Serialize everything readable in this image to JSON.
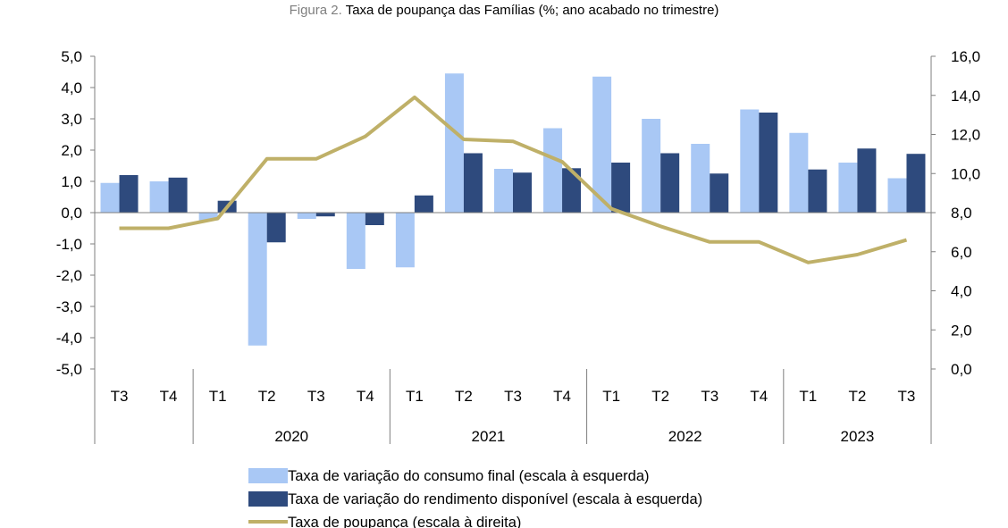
{
  "figure": {
    "prefix": "Figura 2.",
    "title": "Taxa de poupança das Famílias (%; ano acabado no trimestre)"
  },
  "chart_data": {
    "type": "bar",
    "title": "Taxa de poupança das Famílias (%; ano acabado no trimestre)",
    "categories": [
      "T3",
      "T4",
      "T1",
      "T2",
      "T3",
      "T4",
      "T1",
      "T2",
      "T3",
      "T4",
      "T1",
      "T2",
      "T3",
      "T4",
      "T1",
      "T2",
      "T3"
    ],
    "groups": [
      {
        "label": "",
        "start": 0,
        "count": 2
      },
      {
        "label": "2020",
        "start": 2,
        "count": 4
      },
      {
        "label": "2021",
        "start": 6,
        "count": 4
      },
      {
        "label": "2022",
        "start": 10,
        "count": 4
      },
      {
        "label": "2023",
        "start": 14,
        "count": 3
      }
    ],
    "left_axis": {
      "min": -5,
      "max": 5,
      "ticks": [
        "5,0",
        "4,0",
        "3,0",
        "2,0",
        "1,0",
        "0,0",
        "-1,0",
        "-2,0",
        "-3,0",
        "-4,0",
        "-5,0"
      ]
    },
    "right_axis": {
      "min": 0,
      "max": 16,
      "ticks": [
        "16,0",
        "14,0",
        "12,0",
        "10,0",
        "8,0",
        "6,0",
        "4,0",
        "2,0",
        "0,0"
      ]
    },
    "series": [
      {
        "name": "Taxa de variação do consumo final (escala à esquerda)",
        "type": "bar",
        "axis": "left",
        "color": "#a9c8f5",
        "values": [
          0.95,
          1.0,
          -0.25,
          -4.25,
          -0.2,
          -1.8,
          -1.75,
          4.45,
          1.4,
          2.7,
          4.35,
          3.0,
          2.2,
          3.3,
          2.55,
          1.6,
          1.1
        ]
      },
      {
        "name": "Taxa de variação do rendimento disponível (escala à esquerda)",
        "type": "bar",
        "axis": "left",
        "color": "#2e4a7d",
        "values": [
          1.2,
          1.12,
          0.38,
          -0.95,
          -0.12,
          -0.4,
          0.55,
          1.9,
          1.28,
          1.42,
          1.6,
          1.9,
          1.25,
          3.2,
          1.38,
          2.05,
          1.88
        ]
      },
      {
        "name": "Taxa de poupança (escala à direita)",
        "type": "line",
        "axis": "right",
        "color": "#bfb068",
        "values": [
          7.2,
          7.2,
          7.7,
          10.75,
          10.75,
          11.9,
          13.9,
          11.75,
          11.65,
          10.6,
          8.2,
          7.3,
          6.5,
          6.5,
          5.45,
          5.85,
          6.6
        ]
      }
    ],
    "legend_position": "bottom"
  }
}
